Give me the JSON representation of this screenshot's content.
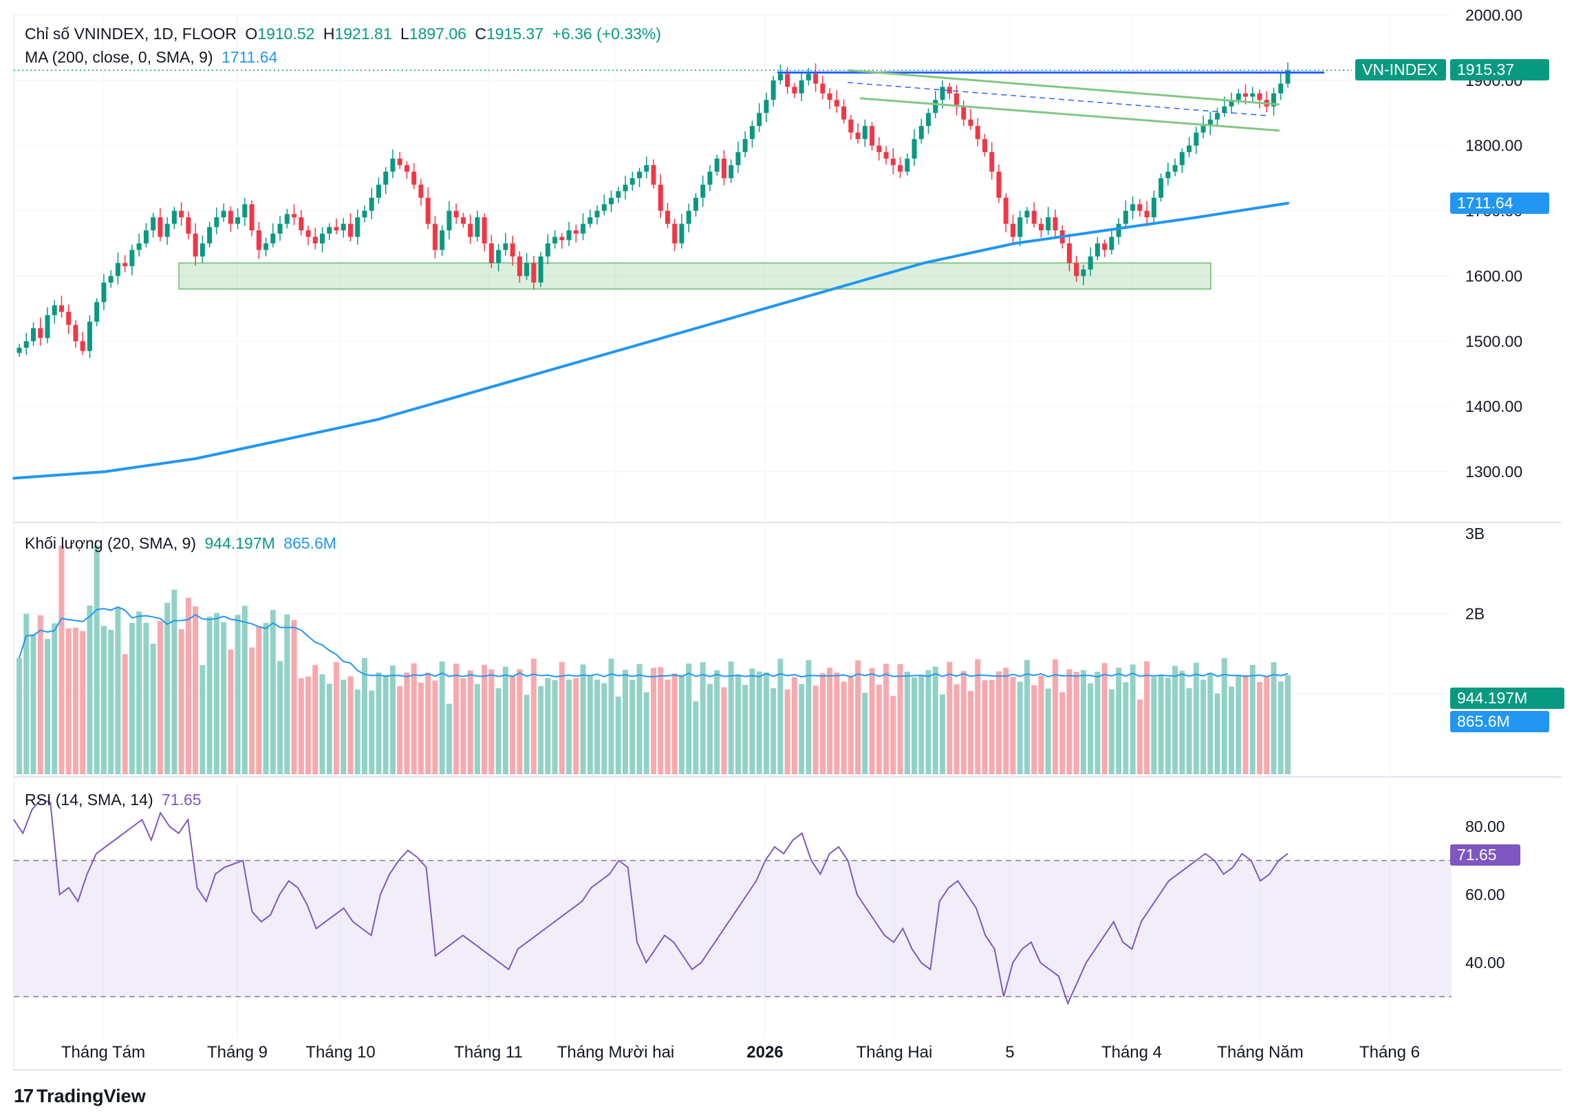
{
  "header": {
    "symbol_desc": "Chỉ số VNINDEX, 1D, FLOOR",
    "o_label": "O",
    "o_value": "1910.52",
    "h_label": "H",
    "h_value": "1921.81",
    "l_label": "L",
    "l_value": "1897.06",
    "c_label": "C",
    "c_value": "1915.37",
    "change": "+6.36 (+0.33%)",
    "ma_label": "MA (200, close, 0, SMA, 9)",
    "ma_value": "1711.64"
  },
  "volume_pane": {
    "label": "Khối lượng (20, SMA, 9)",
    "vol_value": "944.197M",
    "sma_value": "865.6M"
  },
  "rsi_pane": {
    "label": "RSI (14, SMA, 14)",
    "value": "71.65"
  },
  "price_tags": {
    "symbol": "VN-INDEX",
    "last": "1915.37",
    "ma": "1711.64",
    "vol": "944.197M",
    "vol_sma": "865.6M",
    "rsi": "71.65"
  },
  "colors": {
    "up": "#089981",
    "up_light": "#92d2c6",
    "down": "#f23645",
    "down_light": "#f7a9ae",
    "ma": "#2196f3",
    "resistance": "#2962ff",
    "channel": "#81c784",
    "rsi": "#7e57c2"
  },
  "watermark": "TradingView",
  "chart_data": [
    {
      "type": "candlestick",
      "title": "Chỉ số VNINDEX, 1D, FLOOR",
      "y_ticks": [
        "1300.00",
        "1400.00",
        "1500.00",
        "1600.00",
        "1700.00",
        "1800.00",
        "1900.00",
        "2000.00"
      ],
      "ylim": [
        1230,
        2010
      ],
      "x_ticks": [
        "Tháng Tám",
        "Tháng 9",
        "Tháng 10",
        "Tháng 11",
        "Tháng Mười hai",
        "2026",
        "Tháng Hai",
        "5",
        "Tháng 4",
        "Tháng Năm",
        "Tháng 6"
      ],
      "close_path": [
        1490,
        1500,
        1520,
        1505,
        1540,
        1555,
        1545,
        1525,
        1500,
        1485,
        1530,
        1560,
        1590,
        1600,
        1620,
        1615,
        1640,
        1650,
        1670,
        1690,
        1660,
        1680,
        1700,
        1690,
        1665,
        1630,
        1650,
        1675,
        1690,
        1700,
        1680,
        1690,
        1710,
        1670,
        1640,
        1650,
        1665,
        1680,
        1695,
        1690,
        1670,
        1660,
        1650,
        1665,
        1675,
        1670,
        1680,
        1660,
        1690,
        1700,
        1720,
        1740,
        1760,
        1780,
        1770,
        1760,
        1740,
        1720,
        1680,
        1640,
        1670,
        1700,
        1690,
        1680,
        1660,
        1690,
        1650,
        1620,
        1640,
        1650,
        1630,
        1600,
        1620,
        1590,
        1630,
        1650,
        1660,
        1655,
        1670,
        1665,
        1680,
        1690,
        1700,
        1710,
        1720,
        1730,
        1740,
        1750,
        1760,
        1770,
        1740,
        1700,
        1680,
        1650,
        1680,
        1700,
        1720,
        1740,
        1760,
        1780,
        1750,
        1770,
        1790,
        1810,
        1830,
        1850,
        1870,
        1900,
        1910,
        1890,
        1880,
        1900,
        1910,
        1895,
        1880,
        1870,
        1860,
        1840,
        1820,
        1810,
        1830,
        1800,
        1790,
        1780,
        1770,
        1760,
        1780,
        1810,
        1830,
        1850,
        1870,
        1890,
        1880,
        1860,
        1840,
        1830,
        1810,
        1790,
        1760,
        1720,
        1680,
        1660,
        1690,
        1700,
        1680,
        1670,
        1690,
        1670,
        1650,
        1620,
        1600,
        1610,
        1630,
        1650,
        1640,
        1660,
        1680,
        1700,
        1710,
        1700,
        1690,
        1720,
        1750,
        1760,
        1770,
        1790,
        1800,
        1820,
        1830,
        1840,
        1850,
        1860,
        1870,
        1880,
        1875,
        1880,
        1870,
        1860,
        1880,
        1895,
        1915.37
      ],
      "ma200_path": [
        1290,
        1300,
        1320,
        1350,
        1380,
        1420,
        1460,
        1500,
        1540,
        1580,
        1620,
        1650,
        1670,
        1690,
        1711.64
      ],
      "support_zone": [
        1580,
        1620
      ],
      "resistance_level": 1912
    },
    {
      "type": "bar",
      "title": "Khối lượng (20, SMA, 9)",
      "y_ticks": [
        "2B",
        "3B"
      ],
      "ylim": [
        0,
        3000000000
      ],
      "last_volume": "944.197M",
      "last_sma": "865.6M"
    },
    {
      "type": "line",
      "title": "RSI (14, SMA, 14)",
      "y_ticks": [
        "40.00",
        "60.00",
        "80.00"
      ],
      "ylim": [
        20,
        95
      ],
      "bands": [
        30,
        70
      ],
      "values": [
        82,
        78,
        85,
        88,
        87,
        60,
        62,
        58,
        66,
        72,
        74,
        76,
        78,
        80,
        82,
        76,
        84,
        80,
        78,
        82,
        62,
        58,
        66,
        68,
        69,
        70,
        55,
        52,
        54,
        60,
        64,
        62,
        57,
        50,
        52,
        54,
        56,
        52,
        50,
        48,
        60,
        66,
        70,
        73,
        71,
        68,
        42,
        44,
        46,
        48,
        46,
        44,
        42,
        40,
        38,
        44,
        46,
        48,
        50,
        52,
        54,
        56,
        58,
        62,
        64,
        66,
        70,
        68,
        46,
        40,
        44,
        48,
        46,
        42,
        38,
        40,
        44,
        48,
        52,
        56,
        60,
        64,
        70,
        74,
        72,
        76,
        78,
        70,
        66,
        72,
        74,
        70,
        60,
        56,
        52,
        48,
        46,
        50,
        44,
        40,
        38,
        58,
        62,
        64,
        60,
        56,
        48,
        44,
        30,
        40,
        44,
        46,
        40,
        38,
        36,
        28,
        34,
        40,
        44,
        48,
        52,
        46,
        44,
        52,
        56,
        60,
        64,
        66,
        68,
        70,
        72,
        70,
        66,
        68,
        72,
        70,
        64,
        66,
        70,
        72
      ],
      "last": 71.65
    }
  ]
}
